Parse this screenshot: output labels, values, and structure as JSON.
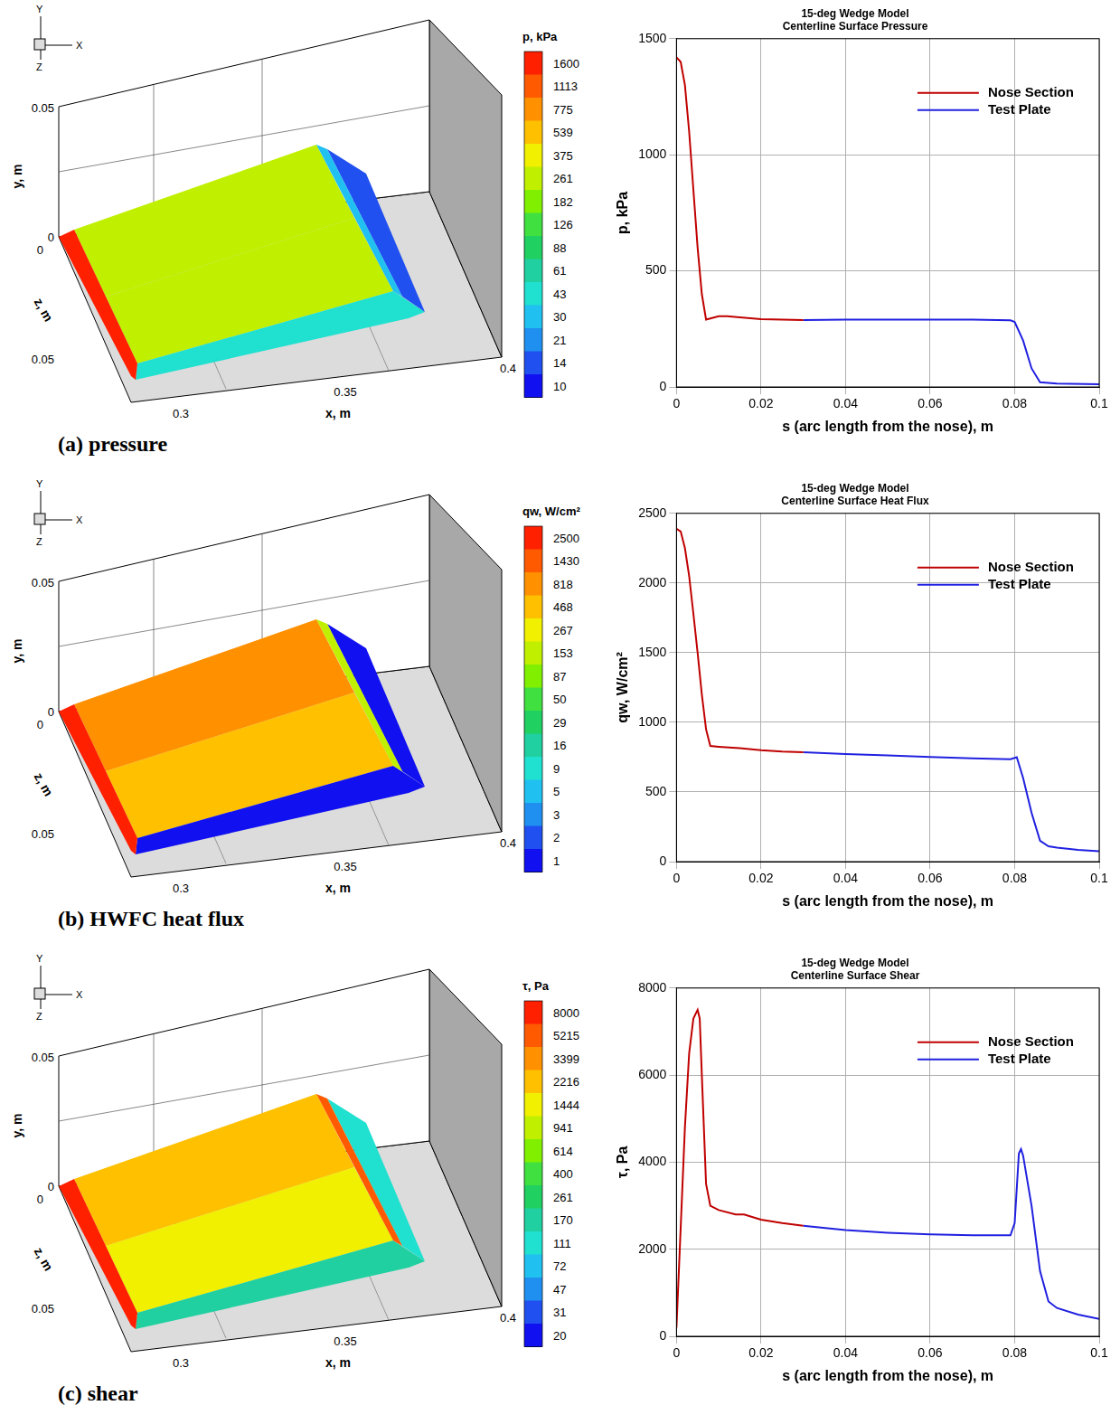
{
  "chart_data": [
    {
      "type": "line",
      "title": [
        "15-deg Wedge Model",
        "Centerline Surface Pressure"
      ],
      "x_label": "s (arc length from the nose), m",
      "y_label": "p, kPa",
      "xlim": [
        0,
        0.1
      ],
      "xticks": [
        0,
        0.02,
        0.04,
        0.06,
        0.08,
        0.1
      ],
      "ylim": [
        0,
        1500
      ],
      "yticks": [
        0,
        500,
        1000,
        1500
      ],
      "grid": true,
      "legend": "upper right",
      "series": [
        {
          "name": "Nose Section",
          "color": "#c00000",
          "x": [
            0,
            0.001,
            0.002,
            0.003,
            0.004,
            0.005,
            0.006,
            0.007,
            0.008,
            0.01,
            0.012,
            0.015,
            0.02,
            0.025,
            0.03
          ],
          "values": [
            1420,
            1400,
            1300,
            1100,
            850,
            600,
            400,
            290,
            295,
            305,
            305,
            300,
            292,
            290,
            288
          ]
        },
        {
          "name": "Test Plate",
          "color": "#2020e0",
          "x": [
            0.03,
            0.04,
            0.05,
            0.06,
            0.07,
            0.079,
            0.08,
            0.082,
            0.084,
            0.086,
            0.09,
            0.1
          ],
          "values": [
            288,
            290,
            290,
            290,
            290,
            287,
            280,
            200,
            80,
            20,
            15,
            12
          ]
        }
      ]
    },
    {
      "type": "line",
      "title": [
        "15-deg Wedge Model",
        "Centerline Surface Heat Flux"
      ],
      "x_label": "s (arc length from the nose), m",
      "y_label": "qw, W/cm²",
      "xlim": [
        0,
        0.1
      ],
      "xticks": [
        0,
        0.02,
        0.04,
        0.06,
        0.08,
        0.1
      ],
      "ylim": [
        0,
        2500
      ],
      "yticks": [
        0,
        500,
        1000,
        1500,
        2000,
        2500
      ],
      "grid": true,
      "legend": "upper right",
      "series": [
        {
          "name": "Nose Section",
          "color": "#c00000",
          "x": [
            0,
            0.001,
            0.002,
            0.003,
            0.004,
            0.005,
            0.006,
            0.007,
            0.008,
            0.01,
            0.015,
            0.02,
            0.025,
            0.03
          ],
          "values": [
            2390,
            2370,
            2250,
            2050,
            1780,
            1500,
            1200,
            950,
            830,
            825,
            815,
            800,
            790,
            785
          ]
        },
        {
          "name": "Test Plate",
          "color": "#2020e0",
          "x": [
            0.03,
            0.04,
            0.05,
            0.06,
            0.07,
            0.079,
            0.0805,
            0.082,
            0.084,
            0.086,
            0.088,
            0.09,
            0.095,
            0.1
          ],
          "values": [
            785,
            772,
            762,
            752,
            742,
            735,
            750,
            600,
            350,
            150,
            110,
            100,
            85,
            75
          ]
        }
      ]
    },
    {
      "type": "line",
      "title": [
        "15-deg Wedge Model",
        "Centerline Surface Shear"
      ],
      "x_label": "s (arc length from the nose), m",
      "y_label": "τ, Pa",
      "xlim": [
        0,
        0.1
      ],
      "xticks": [
        0,
        0.02,
        0.04,
        0.06,
        0.08,
        0.1
      ],
      "ylim": [
        0,
        8000
      ],
      "yticks": [
        0,
        2000,
        4000,
        6000,
        8000
      ],
      "grid": true,
      "legend": "upper right",
      "series": [
        {
          "name": "Nose Section",
          "color": "#c00000",
          "x": [
            0,
            0.001,
            0.002,
            0.003,
            0.004,
            0.005,
            0.0055,
            0.006,
            0.007,
            0.008,
            0.01,
            0.014,
            0.016,
            0.02,
            0.025,
            0.03
          ],
          "values": [
            200,
            2500,
            4800,
            6500,
            7300,
            7500,
            7300,
            6000,
            3500,
            3000,
            2900,
            2800,
            2800,
            2680,
            2600,
            2540
          ]
        },
        {
          "name": "Test Plate",
          "color": "#2020e0",
          "x": [
            0.03,
            0.04,
            0.05,
            0.06,
            0.07,
            0.079,
            0.08,
            0.081,
            0.0815,
            0.082,
            0.084,
            0.086,
            0.088,
            0.09,
            0.095,
            0.1
          ],
          "values": [
            2540,
            2440,
            2380,
            2340,
            2320,
            2320,
            2600,
            4200,
            4300,
            4150,
            3000,
            1500,
            800,
            650,
            500,
            400
          ]
        }
      ]
    }
  ],
  "contour_plots": [
    {
      "caption": "(a) pressure",
      "colorbar_title": "p, kPa",
      "colorbar_ticks": [
        1600,
        1113,
        775,
        539,
        375,
        261,
        182,
        126,
        88,
        61,
        43,
        30,
        21,
        14,
        10
      ],
      "surface": {
        "nose": 1600,
        "top": 300,
        "top_front": 261,
        "aft_edge": 30,
        "aft": 14,
        "side": 43
      },
      "triad": {
        "x": "X",
        "y": "Y",
        "z": "Z"
      },
      "axis_labels": {
        "x": "x, m",
        "y": "y, m",
        "z": "z, m"
      },
      "x_ticks": [
        0.3,
        0.35,
        0.4
      ],
      "y_ticks": [
        0,
        0.05
      ],
      "z_ticks": [
        0,
        0.05
      ]
    },
    {
      "caption": "(b) HWFC heat flux",
      "colorbar_title": "qw, W/cm²",
      "colorbar_ticks": [
        2500,
        1430,
        818,
        468,
        267,
        153,
        87,
        50,
        29,
        16,
        9,
        5,
        3,
        2,
        1
      ],
      "surface": {
        "nose": 2500,
        "top": 818,
        "top_front": 468,
        "aft_edge": 153,
        "aft": 1,
        "side": 1
      },
      "triad": {
        "x": "X",
        "y": "Y",
        "z": "Z"
      },
      "axis_labels": {
        "x": "x, m",
        "y": "y, m",
        "z": "z, m"
      },
      "x_ticks": [
        0.3,
        0.35,
        0.4
      ],
      "y_ticks": [
        0,
        0.05
      ],
      "z_ticks": [
        0,
        0.05
      ]
    },
    {
      "caption": "(c) shear",
      "colorbar_title": "τ, Pa",
      "colorbar_ticks": [
        8000,
        5215,
        3399,
        2216,
        1444,
        941,
        614,
        400,
        261,
        170,
        111,
        72,
        47,
        31,
        20
      ],
      "surface": {
        "nose": 8000,
        "top": 2216,
        "top_front": 1444,
        "aft_edge": 5215,
        "aft": 111,
        "side": 170
      },
      "triad": {
        "x": "X",
        "y": "Y",
        "z": "Z"
      },
      "axis_labels": {
        "x": "x, m",
        "y": "y, m",
        "z": "z, m"
      },
      "x_ticks": [
        0.3,
        0.35,
        0.4
      ],
      "y_ticks": [
        0,
        0.05
      ],
      "z_ticks": [
        0,
        0.05
      ]
    }
  ]
}
